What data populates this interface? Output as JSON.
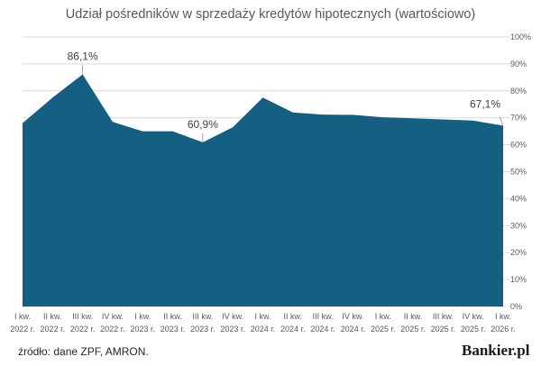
{
  "title": "Udział pośredników w sprzedaży kredytów hipotecznych (wartościowo)",
  "source": "źródło: dane ZPF, AMRON.",
  "brand": "Bankier.pl",
  "colors": {
    "area": "#155f82",
    "grid": "#d9d9d9",
    "text": "#595959"
  },
  "chart_data": {
    "type": "area",
    "title": "Udział pośredników w sprzedaży kredytów hipotecznych (wartościowo)",
    "categories": [
      [
        "I kw.",
        "2022 r."
      ],
      [
        "II kw.",
        "2022 r."
      ],
      [
        "III kw.",
        "2022 r."
      ],
      [
        "IV kw.",
        "2022 r."
      ],
      [
        "I kw.",
        "2023 r."
      ],
      [
        "II kw.",
        "2023 r."
      ],
      [
        "III kw.",
        "2023 r."
      ],
      [
        "IV kw.",
        "2023 r."
      ],
      [
        "I kw.",
        "2024 r."
      ],
      [
        "II kw.",
        "2024 r."
      ],
      [
        "III kw.",
        "2024 r."
      ],
      [
        "IV kw.",
        "2024 r."
      ],
      [
        "I kw.",
        "2025 r."
      ],
      [
        "II kw.",
        "2025 r."
      ],
      [
        "III kw.",
        "2025 r."
      ],
      [
        "IV kw.",
        "2025 r."
      ],
      [
        "I kw.",
        "2026 r."
      ]
    ],
    "values": [
      68.0,
      77.5,
      86.1,
      68.5,
      65.0,
      65.0,
      60.9,
      66.5,
      77.5,
      72.0,
      71.2,
      71.1,
      70.2,
      69.8,
      69.4,
      69.0,
      67.1
    ],
    "y_axis": {
      "min": 0,
      "max": 100,
      "step": 10,
      "suffix": "%",
      "position": "right"
    },
    "data_labels": [
      {
        "index": 2,
        "text": "86,1%"
      },
      {
        "index": 6,
        "text": "60,9%"
      },
      {
        "index": 16,
        "text": "67,1%"
      }
    ],
    "grid": true,
    "legend": "none"
  }
}
